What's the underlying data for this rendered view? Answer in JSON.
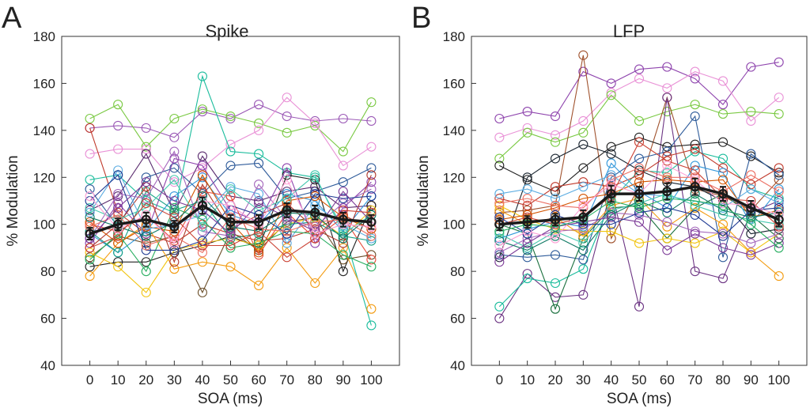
{
  "figure": {
    "panels": [
      "A",
      "B"
    ]
  },
  "chart_data": [
    {
      "type": "line",
      "panel_letter": "A",
      "title": "Spike",
      "xlabel": "SOA (ms)",
      "ylabel": "% Modulation",
      "x": [
        0,
        10,
        20,
        30,
        40,
        50,
        60,
        70,
        80,
        90,
        100
      ],
      "xlim": [
        -10,
        110
      ],
      "ylim": [
        40,
        180
      ],
      "yticks": [
        40,
        60,
        80,
        100,
        120,
        140,
        160,
        180
      ],
      "grid": false,
      "legend": "none",
      "mean": {
        "values": [
          96,
          100,
          102,
          99,
          108,
          101,
          101,
          106,
          105,
          102,
          101
        ],
        "errors": [
          2.5,
          2.5,
          3,
          2.5,
          3.5,
          3,
          3,
          3,
          3,
          3,
          3
        ]
      },
      "series": [
        {
          "color": "#9b59b6",
          "values": [
            141,
            142,
            141,
            137,
            148,
            145,
            151,
            146,
            144,
            145,
            144
          ]
        },
        {
          "color": "#7ac943",
          "values": [
            145,
            151,
            133,
            145,
            149,
            146,
            143,
            139,
            142,
            131,
            152
          ]
        },
        {
          "color": "#e991d6",
          "values": [
            130,
            132,
            132,
            118,
            124,
            134,
            140,
            154,
            143,
            125,
            133
          ]
        },
        {
          "color": "#c0392b",
          "values": [
            141,
            105,
            96,
            92,
            100,
            96,
            93,
            94,
            98,
            104,
            98
          ]
        },
        {
          "color": "#1abc9c",
          "values": [
            119,
            121,
            110,
            105,
            163,
            131,
            130,
            122,
            120,
            98,
            57
          ]
        },
        {
          "color": "#2e5b9a",
          "values": [
            115,
            99,
            120,
            124,
            113,
            125,
            126,
            111,
            114,
            118,
            124
          ]
        },
        {
          "color": "#5b2c6f",
          "values": [
            106,
            112,
            130,
            105,
            129,
            112,
            110,
            114,
            116,
            107,
            108
          ]
        },
        {
          "color": "#222222",
          "values": [
            82,
            84,
            84,
            88,
            91,
            95,
            90,
            121,
            119,
            80,
            108
          ]
        },
        {
          "color": "#6b4f2a",
          "values": [
            86,
            95,
            92,
            95,
            71,
            97,
            89,
            101,
            103,
            85,
            87
          ]
        },
        {
          "color": "#f39c12",
          "values": [
            78,
            92,
            100,
            81,
            84,
            82,
            74,
            90,
            75,
            90,
            64
          ]
        },
        {
          "color": "#f1c40f",
          "values": [
            88,
            82,
            71,
            89,
            92,
            94,
            91,
            100,
            103,
            95,
            106
          ]
        },
        {
          "color": "#8e44ad",
          "values": [
            92,
            109,
            96,
            128,
            125,
            106,
            101,
            124,
            92,
            107,
            118
          ]
        },
        {
          "color": "#3498db",
          "values": [
            96,
            88,
            97,
            112,
            120,
            104,
            100,
            113,
            110,
            97,
            112
          ]
        },
        {
          "color": "#e74c3c",
          "values": [
            100,
            97,
            104,
            93,
            114,
            112,
            87,
            105,
            94,
            103,
            85
          ]
        },
        {
          "color": "#16a085",
          "values": [
            97,
            88,
            114,
            106,
            110,
            94,
            96,
            100,
            101,
            95,
            93
          ]
        },
        {
          "color": "#b03a2e",
          "values": [
            90,
            100,
            116,
            84,
            117,
            98,
            104,
            109,
            98,
            92,
            121
          ]
        },
        {
          "color": "#d35400",
          "values": [
            101,
            92,
            99,
            97,
            121,
            101,
            88,
            110,
            112,
            103,
            98
          ]
        },
        {
          "color": "#5dade2",
          "values": [
            105,
            123,
            98,
            100,
            104,
            116,
            113,
            92,
            108,
            100,
            94
          ]
        },
        {
          "color": "#27ae60",
          "values": [
            85,
            96,
            80,
            107,
            102,
            90,
            92,
            97,
            96,
            87,
            82
          ]
        },
        {
          "color": "#a569bd",
          "values": [
            94,
            113,
            111,
            131,
            97,
            95,
            117,
            102,
            99,
            109,
            115
          ]
        },
        {
          "color": "#48c9b0",
          "values": [
            107,
            102,
            107,
            119,
            99,
            115,
            106,
            111,
            121,
            96,
            104
          ]
        },
        {
          "color": "#1f3a93",
          "values": [
            110,
            121,
            89,
            89,
            93,
            108,
            104,
            96,
            113,
            111,
            112
          ]
        },
        {
          "color": "#ec7063",
          "values": [
            99,
            104,
            91,
            95,
            88,
            103,
            98,
            97,
            101,
            102,
            95
          ]
        },
        {
          "color": "#7d3c98",
          "values": [
            94,
            107,
            118,
            110,
            106,
            96,
            109,
            103,
            97,
            114,
            101
          ]
        },
        {
          "color": "#117a65",
          "values": [
            103,
            99,
            95,
            101,
            112,
            99,
            97,
            105,
            104,
            94,
            104
          ]
        },
        {
          "color": "#cb4335",
          "values": [
            90,
            95,
            109,
            103,
            91,
            91,
            97,
            86,
            94,
            106,
            105
          ]
        },
        {
          "color": "#ff9fd5",
          "values": [
            112,
            98,
            104,
            92,
            110,
            108,
            100,
            119,
            96,
            100,
            99
          ]
        }
      ]
    },
    {
      "type": "line",
      "panel_letter": "B",
      "title": "LFP",
      "xlabel": "SOA (ms)",
      "ylabel": "% Modulation",
      "x": [
        0,
        10,
        20,
        30,
        40,
        50,
        60,
        70,
        80,
        90,
        100
      ],
      "xlim": [
        -10,
        110
      ],
      "ylim": [
        40,
        180
      ],
      "yticks": [
        40,
        60,
        80,
        100,
        120,
        140,
        160,
        180
      ],
      "grid": false,
      "legend": "none",
      "mean": {
        "values": [
          100,
          101,
          102,
          103,
          113,
          113,
          114,
          116,
          113,
          107,
          102
        ],
        "errors": [
          2.5,
          2.5,
          2.5,
          3,
          3.5,
          3,
          3.5,
          3.5,
          3,
          3,
          3
        ]
      },
      "series": [
        {
          "color": "#8e44ad",
          "values": [
            145,
            148,
            146,
            165,
            160,
            166,
            167,
            162,
            151,
            167,
            169
          ]
        },
        {
          "color": "#e991d6",
          "values": [
            137,
            141,
            138,
            144,
            156,
            162,
            158,
            165,
            161,
            144,
            154
          ]
        },
        {
          "color": "#7ac943",
          "values": [
            128,
            139,
            135,
            139,
            155,
            144,
            148,
            151,
            147,
            148,
            147
          ]
        },
        {
          "color": "#a0522d",
          "values": [
            105,
            106,
            108,
            172,
            94,
            116,
            154,
            115,
            112,
            106,
            119
          ]
        },
        {
          "color": "#6c3483",
          "values": [
            60,
            79,
            69,
            70,
            115,
            65,
            154,
            80,
            77,
            105,
            110
          ]
        },
        {
          "color": "#1abc9c",
          "values": [
            65,
            77,
            75,
            81,
            110,
            123,
            122,
            131,
            128,
            115,
            111
          ]
        },
        {
          "color": "#222222",
          "values": [
            125,
            119,
            114,
            124,
            133,
            137,
            133,
            134,
            135,
            129,
            122
          ]
        },
        {
          "color": "#2e5b9a",
          "values": [
            87,
            86,
            87,
            85,
            120,
            128,
            131,
            146,
            86,
            130,
            121
          ]
        },
        {
          "color": "#1b2631",
          "values": [
            86,
            120,
            128,
            134,
            130,
            123,
            118,
            116,
            110,
            96,
            98
          ]
        },
        {
          "color": "#196f3d",
          "values": [
            100,
            96,
            64,
            94,
            107,
            108,
            94,
            107,
            113,
            104,
            94
          ]
        },
        {
          "color": "#f1c40f",
          "values": [
            108,
            102,
            98,
            97,
            97,
            92,
            94,
            92,
            97,
            88,
            96
          ]
        },
        {
          "color": "#f39c12",
          "values": [
            106,
            100,
            103,
            95,
            108,
            111,
            99,
            107,
            100,
            88,
            78
          ]
        },
        {
          "color": "#c0392b",
          "values": [
            111,
            108,
            116,
            118,
            116,
            121,
            129,
            132,
            124,
            117,
            124
          ]
        },
        {
          "color": "#3498db",
          "values": [
            94,
            98,
            101,
            99,
            126,
            114,
            107,
            125,
            122,
            100,
            115
          ]
        },
        {
          "color": "#d35400",
          "values": [
            102,
            104,
            107,
            111,
            113,
            118,
            119,
            118,
            119,
            103,
            106
          ]
        },
        {
          "color": "#5dade2",
          "values": [
            113,
            115,
            111,
            116,
            121,
            113,
            112,
            110,
            107,
            115,
            109
          ]
        },
        {
          "color": "#a569bd",
          "values": [
            88,
            94,
            97,
            98,
            105,
            104,
            101,
            97,
            96,
            92,
            96
          ]
        },
        {
          "color": "#48c9b0",
          "values": [
            96,
            90,
            97,
            92,
            106,
            109,
            113,
            108,
            104,
            102,
            100
          ]
        },
        {
          "color": "#cb4335",
          "values": [
            100,
            103,
            100,
            103,
            112,
            135,
            127,
            123,
            111,
            110,
            99
          ]
        },
        {
          "color": "#117a65",
          "values": [
            93,
            89,
            95,
            89,
            104,
            110,
            105,
            113,
            106,
            103,
            105
          ]
        },
        {
          "color": "#ec7063",
          "values": [
            109,
            111,
            108,
            107,
            119,
            124,
            120,
            120,
            114,
            121,
            114
          ]
        },
        {
          "color": "#7d3c98",
          "values": [
            84,
            92,
            99,
            101,
            103,
            101,
            89,
            96,
            90,
            87,
            92
          ]
        },
        {
          "color": "#1f3a93",
          "values": [
            103,
            96,
            104,
            100,
            100,
            105,
            107,
            104,
            95,
            106,
            107
          ]
        },
        {
          "color": "#ff9fd5",
          "values": [
            91,
            97,
            94,
            108,
            117,
            113,
            125,
            119,
            109,
            108,
            104
          ]
        },
        {
          "color": "#27ae60",
          "values": [
            97,
            100,
            99,
            102,
            110,
            107,
            111,
            110,
            108,
            100,
            90
          ]
        }
      ]
    }
  ]
}
